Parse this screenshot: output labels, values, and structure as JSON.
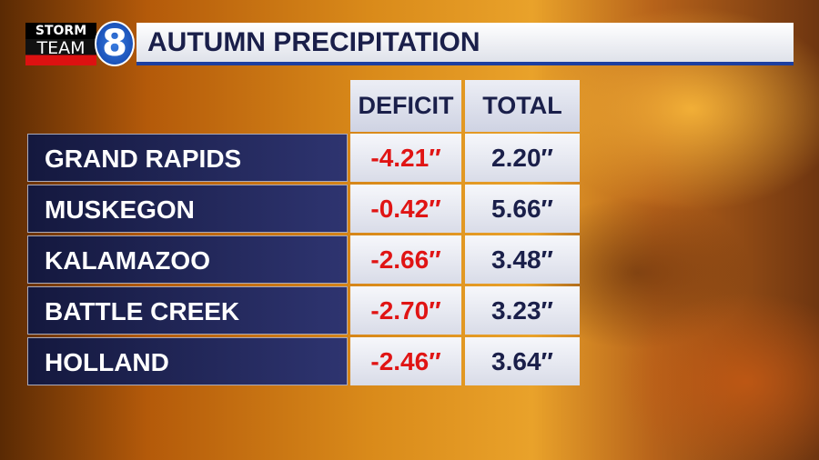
{
  "logo": {
    "top": "STORM",
    "bottom": "TEAM",
    "number": "8"
  },
  "header": {
    "title": "AUTUMN PRECIPITATION"
  },
  "table": {
    "columns": [
      "DEFICIT",
      "TOTAL"
    ],
    "rows": [
      [
        "GRAND RAPIDS",
        "-4.21″",
        "2.20″"
      ],
      [
        "MUSKEGON",
        "-0.42″",
        "5.66″"
      ],
      [
        "KALAMAZOO",
        "-2.66″",
        "3.48″"
      ],
      [
        "BATTLE CREEK",
        "-2.70″",
        "3.23″"
      ],
      [
        "HOLLAND",
        "-2.46″",
        "3.64″"
      ]
    ]
  }
}
